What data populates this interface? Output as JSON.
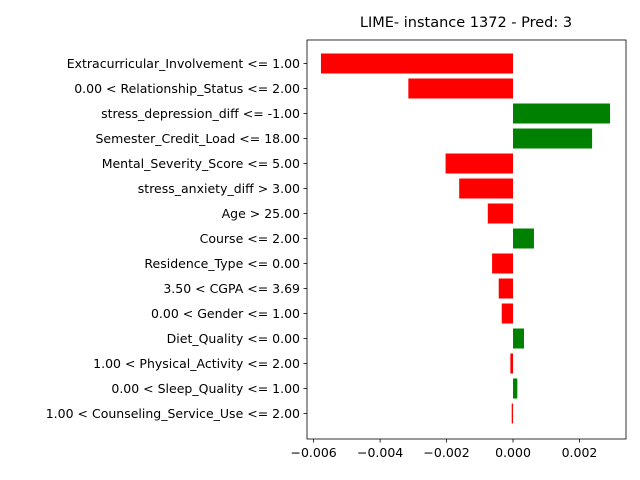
{
  "chart_data": {
    "type": "bar",
    "orientation": "horizontal",
    "title": "LIME- instance 1372 - Pred: 3",
    "xlabel": "",
    "ylabel": "",
    "xlim": [
      -0.0062,
      0.0034
    ],
    "xticks": [
      -0.006,
      -0.004,
      -0.002,
      0.0,
      0.002
    ],
    "xtick_labels": [
      "−0.006",
      "−0.004",
      "−0.002",
      "0.000",
      "0.002"
    ],
    "grid": false,
    "colors": {
      "positive": "#008000",
      "negative": "#ff0000"
    },
    "categories": [
      "Extracurricular_Involvement <= 1.00",
      "0.00 < Relationship_Status <= 2.00",
      "stress_depression_diff <= -1.00",
      "Semester_Credit_Load <= 18.00",
      "Mental_Severity_Score <= 5.00",
      "stress_anxiety_diff > 3.00",
      "Age > 25.00",
      "Course <= 2.00",
      "Residence_Type <= 0.00",
      "3.50 < CGPA <= 3.69",
      "0.00 < Gender <= 1.00",
      "Diet_Quality <= 0.00",
      "1.00 < Physical_Activity <= 2.00",
      "0.00 < Sleep_Quality <= 1.00",
      "1.00 < Counseling_Service_Use <= 2.00"
    ],
    "values": [
      -0.00578,
      -0.00315,
      0.00292,
      0.00238,
      -0.00203,
      -0.00162,
      -0.00076,
      0.00063,
      -0.00063,
      -0.00043,
      -0.00034,
      0.00033,
      -8e-05,
      0.00013,
      -4e-05
    ]
  }
}
